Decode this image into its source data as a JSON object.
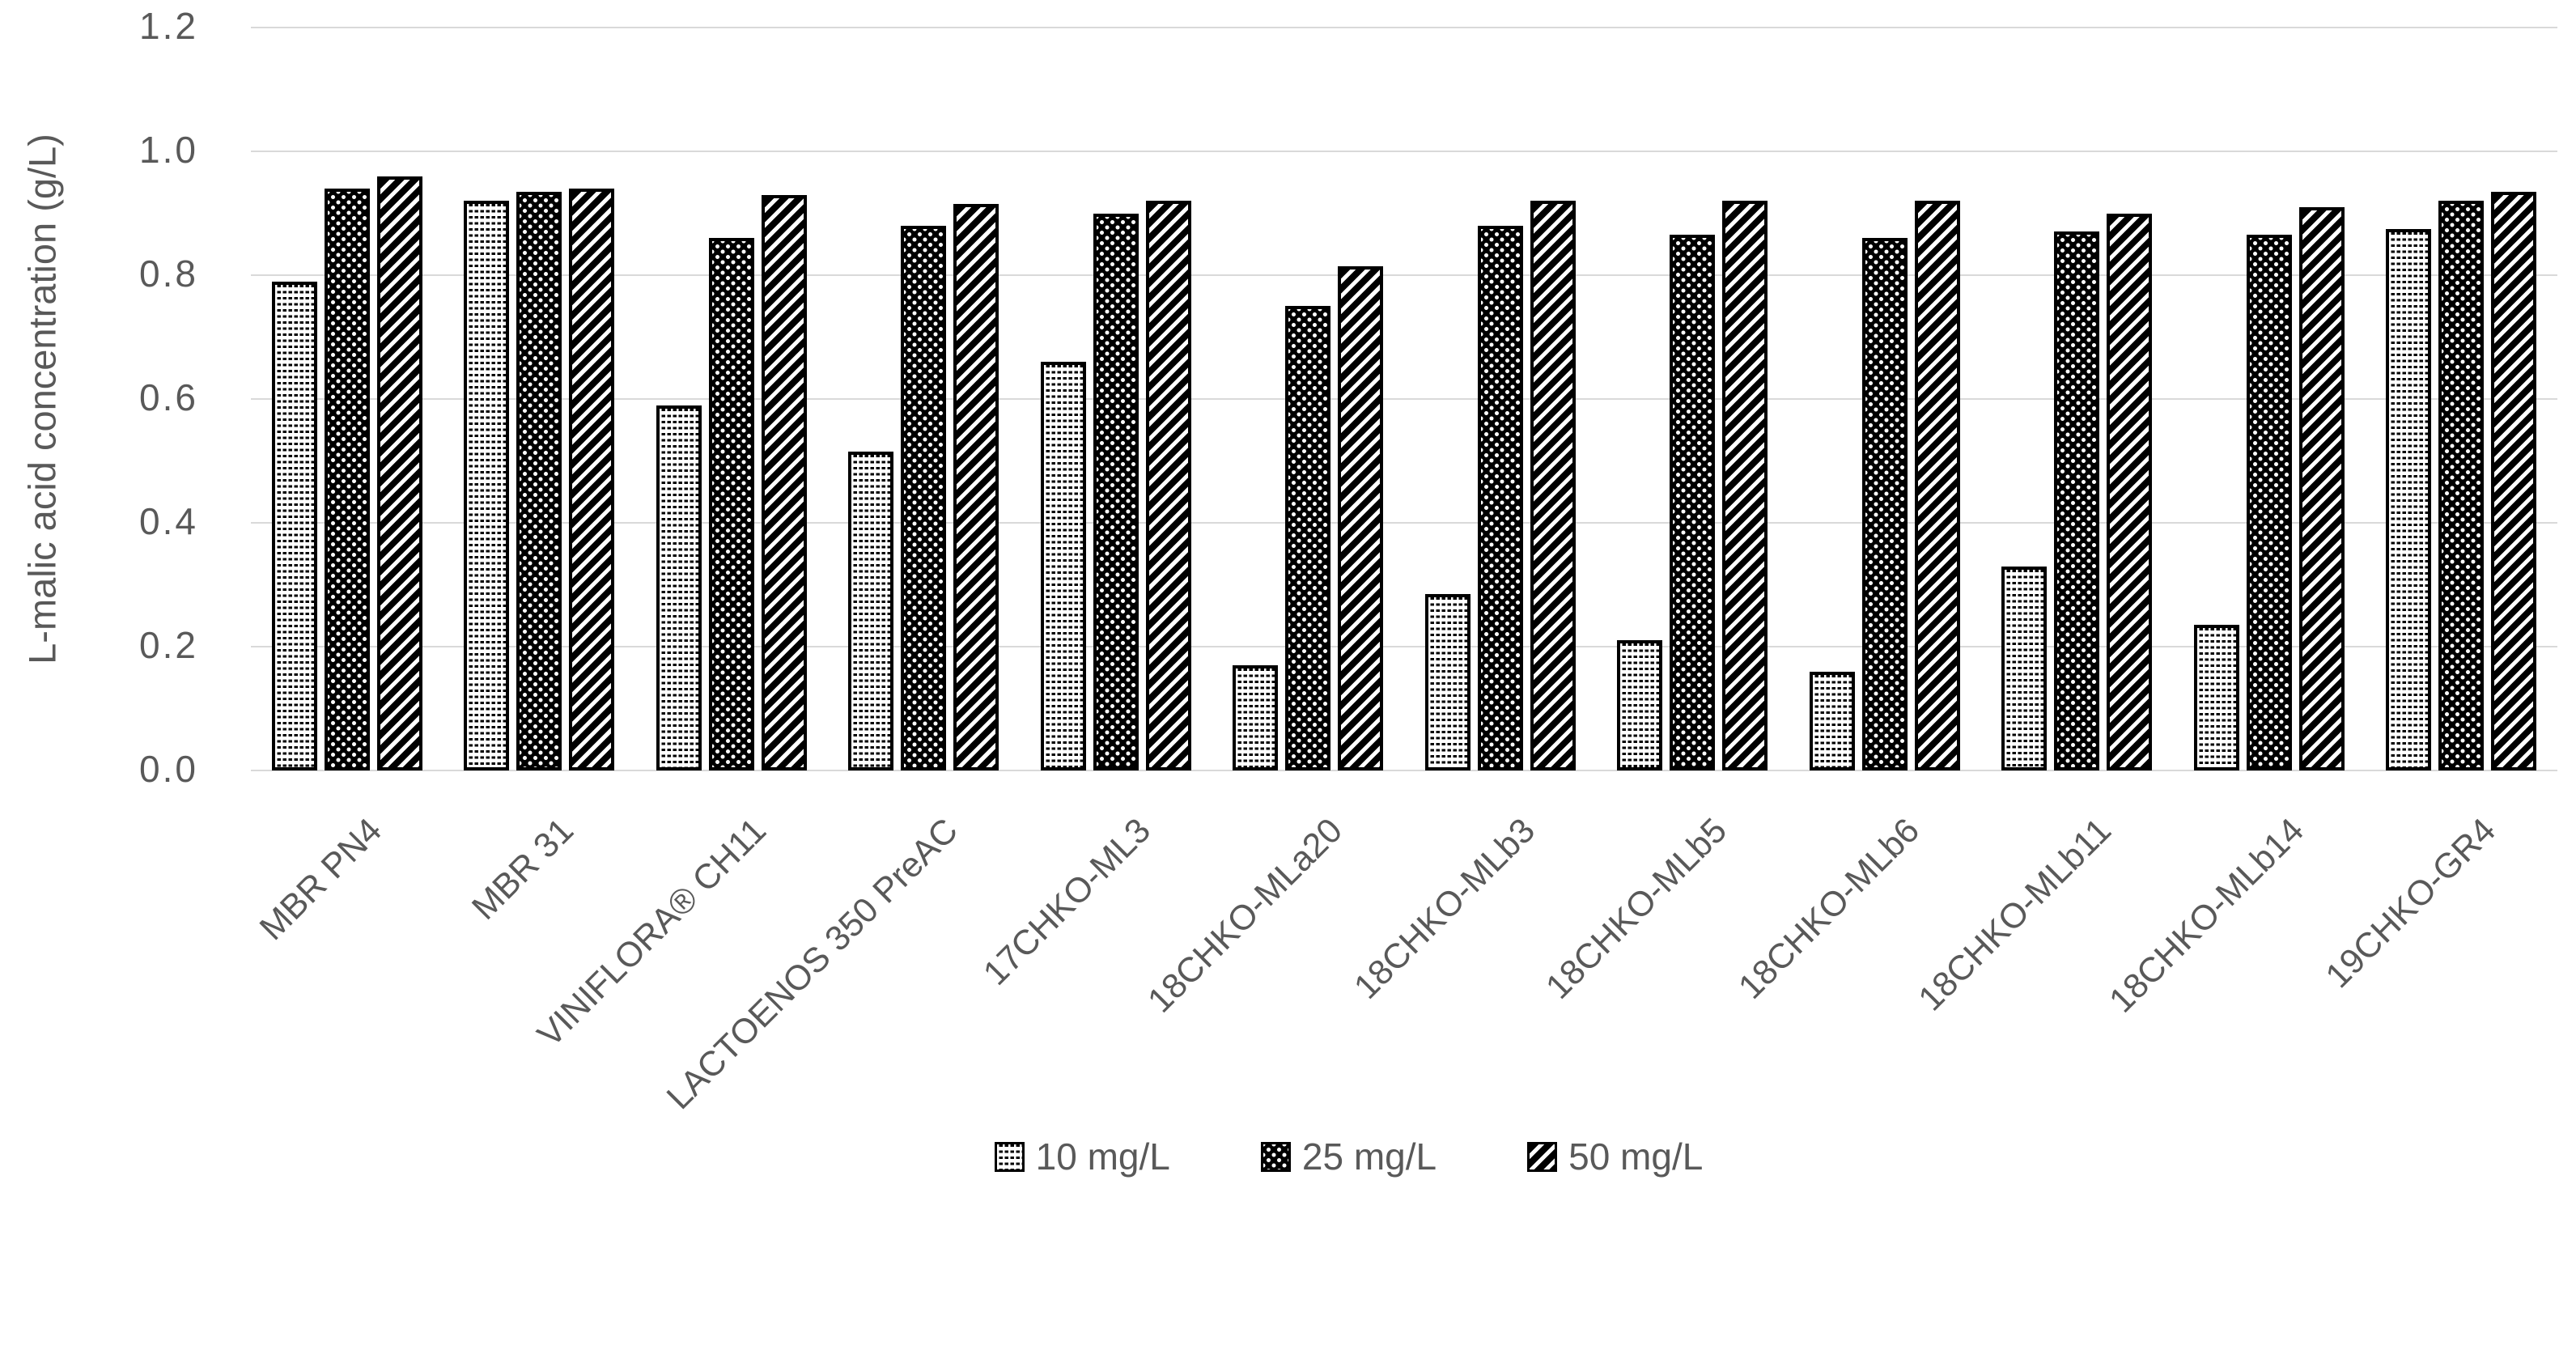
{
  "chart_data": {
    "type": "bar",
    "title": "",
    "xlabel": "",
    "ylabel": "L-malic acid concentration (g/L)",
    "ylim": [
      0,
      1.2
    ],
    "ytick_step": 0.2,
    "yticks": [
      "1.2",
      "1.0",
      "0.8",
      "0.6",
      "0.4",
      "0.2",
      "0.0"
    ],
    "grid": true,
    "legend_position": "bottom-center",
    "categories": [
      "MBR PN4",
      "MBR 31",
      "VINIFLORA® CH11",
      "LACTOENOS 350 PreAC",
      "17CHKO-ML3",
      "18CHKO-MLa20",
      "18CHKO-MLb3",
      "18CHKO-MLb5",
      "18CHKO-MLb6",
      "18CHKO-MLb11",
      "18CHKO-MLb14",
      "19CHKO-GR4"
    ],
    "series": [
      {
        "name": "10 mg/L",
        "pattern": "light-dots",
        "values": [
          0.79,
          0.92,
          0.59,
          0.515,
          0.66,
          0.17,
          0.285,
          0.21,
          0.16,
          0.33,
          0.235,
          0.875
        ]
      },
      {
        "name": "25 mg/L",
        "pattern": "dark-dots",
        "values": [
          0.94,
          0.935,
          0.86,
          0.88,
          0.9,
          0.75,
          0.88,
          0.865,
          0.86,
          0.87,
          0.865,
          0.92
        ]
      },
      {
        "name": "50 mg/L",
        "pattern": "diagonal-stripes",
        "values": [
          0.96,
          0.94,
          0.93,
          0.915,
          0.92,
          0.815,
          0.92,
          0.92,
          0.92,
          0.9,
          0.91,
          0.935
        ]
      }
    ]
  },
  "styles": {
    "text_color": "#595959",
    "gridline_color": "#d9d9d9",
    "bar_outline_color": "#000000",
    "background_color": "#ffffff"
  }
}
